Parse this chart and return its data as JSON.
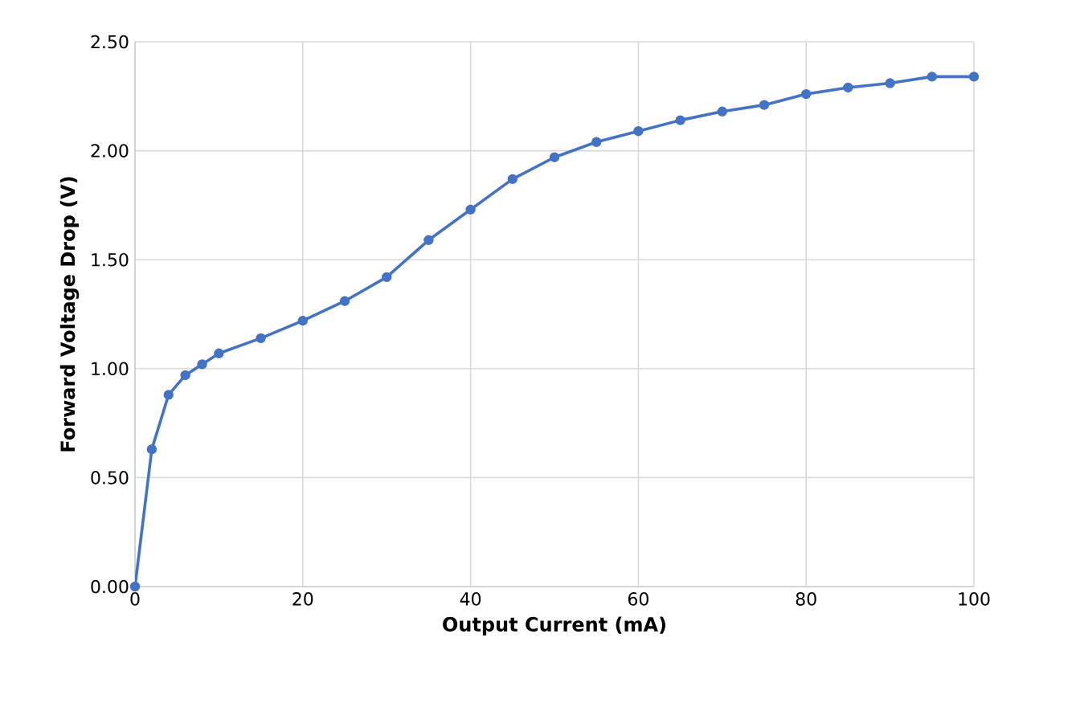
{
  "chart_data": {
    "type": "line",
    "xlabel": "Output Current (mA)",
    "ylabel": "Forward Voltage Drop (V)",
    "x": [
      0,
      2,
      4,
      6,
      8,
      10,
      15,
      20,
      25,
      30,
      35,
      40,
      45,
      50,
      55,
      60,
      65,
      70,
      75,
      80,
      85,
      90,
      95,
      100
    ],
    "series": [
      {
        "color": "#4472c4",
        "values": [
          0,
          0.63,
          0.88,
          0.97,
          1.02,
          1.07,
          1.14,
          1.22,
          1.31,
          1.42,
          1.59,
          1.73,
          1.87,
          1.97,
          2.04,
          2.09,
          2.14,
          2.18,
          2.21,
          2.26,
          2.29,
          2.31,
          2.34,
          2.34
        ]
      }
    ],
    "xlim": [
      0,
      100
    ],
    "xticks": [
      0,
      20,
      40,
      60,
      80,
      100
    ],
    "ylim": [
      0,
      2.5
    ],
    "yticks": [
      {
        "value": 0,
        "label": "0.00"
      },
      {
        "value": 0.5,
        "label": "0.50"
      },
      {
        "value": 1,
        "label": "1.00"
      },
      {
        "value": 1.5,
        "label": "1.50"
      },
      {
        "value": 2,
        "label": "2.00"
      },
      {
        "value": 2.5,
        "label": "2.50"
      }
    ],
    "grid": true,
    "marker": "circle",
    "line_style": "solid"
  }
}
